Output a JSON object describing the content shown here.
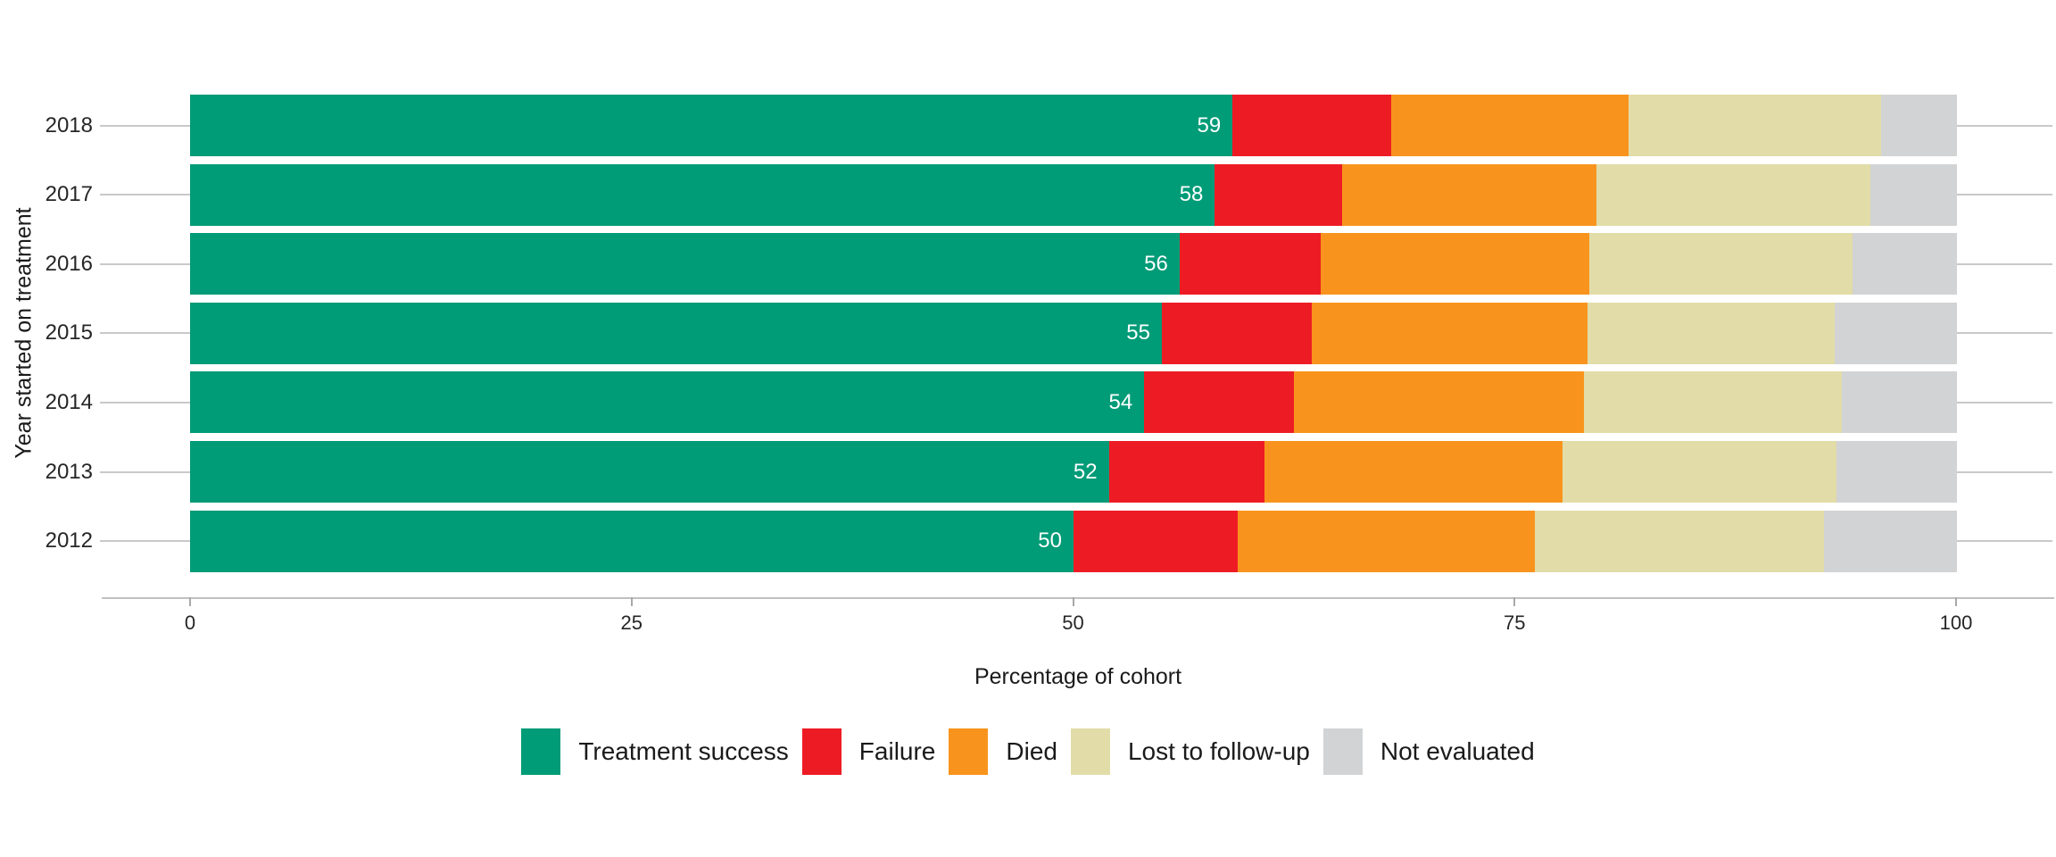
{
  "chart_data": {
    "type": "bar",
    "orientation": "horizontal",
    "stacked": true,
    "title": "",
    "xlabel": "Percentage of cohort",
    "ylabel": "Year started on treatment",
    "xlim": [
      0,
      100
    ],
    "x_ticks": [
      "0",
      "25",
      "50",
      "75",
      "100"
    ],
    "x_tick_values": [
      0,
      25,
      50,
      75,
      100
    ],
    "grid": "horizontal-per-category",
    "legend_position": "bottom",
    "categories": [
      "2018",
      "2017",
      "2016",
      "2015",
      "2014",
      "2013",
      "2012"
    ],
    "series": [
      {
        "name": "Treatment success",
        "color": "#009B77",
        "values": [
          59,
          58,
          56,
          55,
          54,
          52,
          50
        ]
      },
      {
        "name": "Failure",
        "color": "#ED1C24",
        "values": [
          9,
          7.2,
          8,
          8.5,
          8.5,
          8.8,
          9.3
        ]
      },
      {
        "name": "Died",
        "color": "#F8941D",
        "values": [
          13.4,
          14.4,
          15.2,
          15.6,
          16.4,
          16.9,
          16.8
        ]
      },
      {
        "name": "Lost to follow-up",
        "color": "#E2DCA8",
        "values": [
          14.3,
          15.5,
          14.9,
          14,
          14.6,
          15.5,
          16.4
        ]
      },
      {
        "name": "Not evaluated",
        "color": "#D1D3D4",
        "values": [
          4.3,
          4.9,
          5.9,
          6.9,
          6.5,
          6.8,
          7.5
        ]
      }
    ],
    "bar_value_labels": [
      "59",
      "58",
      "56",
      "55",
      "54",
      "52",
      "50"
    ],
    "bar_value_label_series": "Treatment success",
    "bar_value_label_color": "#ffffff"
  },
  "style_colors": {
    "gridline": "#c9c9c9",
    "axis_line": "#c0c0c0",
    "tick_mark": "#a8a8a8",
    "text": "#262626",
    "background": "#ffffff"
  }
}
